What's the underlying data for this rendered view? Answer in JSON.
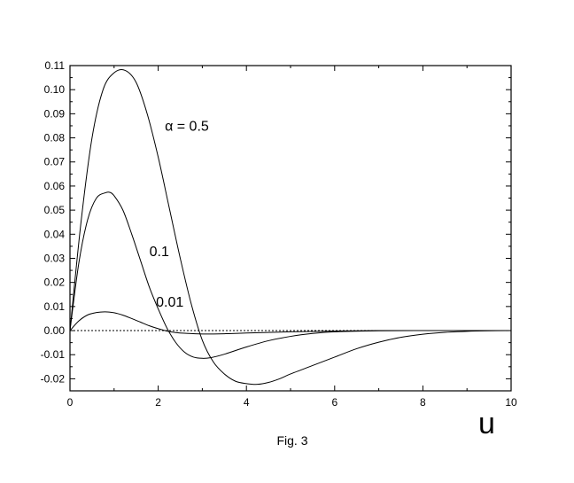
{
  "chart_data": {
    "type": "line",
    "xlabel": "u",
    "ylabel": "",
    "xlim": [
      0,
      10
    ],
    "ylim": [
      -0.025,
      0.11
    ],
    "x_ticks": [
      0,
      2,
      4,
      6,
      8,
      10
    ],
    "x_tick_labels": [
      "0",
      "2",
      "4",
      "6",
      "8",
      "10"
    ],
    "y_ticks": [
      -0.02,
      -0.01,
      0.0,
      0.01,
      0.02,
      0.03,
      0.04,
      0.05,
      0.06,
      0.07,
      0.08,
      0.09,
      0.1,
      0.11
    ],
    "y_tick_labels": [
      "-0.02",
      "-0.01",
      "0.00",
      "0.01",
      "0.02",
      "0.03",
      "0.04",
      "0.05",
      "0.06",
      "0.07",
      "0.08",
      "0.09",
      "0.10",
      "0.11"
    ],
    "grid": false,
    "reference_line": {
      "y": 0,
      "style": "dotted"
    },
    "series": [
      {
        "name": "α = 0.5",
        "x": [
          0,
          0.25,
          0.5,
          0.75,
          1.0,
          1.25,
          1.5,
          1.75,
          2.0,
          2.25,
          2.5,
          2.75,
          3.0,
          3.25,
          3.5,
          3.75,
          4.0,
          4.25,
          4.5,
          4.75,
          5.0,
          5.5,
          6.0,
          6.5,
          7.0,
          7.5,
          8.0,
          8.5,
          9.0,
          9.5,
          10.0
        ],
        "values": [
          0,
          0.045,
          0.08,
          0.1,
          0.107,
          0.108,
          0.103,
          0.09,
          0.072,
          0.051,
          0.03,
          0.011,
          -0.004,
          -0.013,
          -0.018,
          -0.021,
          -0.022,
          -0.0223,
          -0.0215,
          -0.02,
          -0.018,
          -0.0145,
          -0.011,
          -0.0075,
          -0.0048,
          -0.0028,
          -0.0015,
          -0.0007,
          -0.0003,
          -0.0001,
          0
        ]
      },
      {
        "name": "0.1",
        "x": [
          0,
          0.2,
          0.4,
          0.6,
          0.8,
          0.9,
          1.0,
          1.2,
          1.4,
          1.6,
          1.8,
          2.0,
          2.2,
          2.4,
          2.6,
          2.8,
          3.0,
          3.2,
          3.5,
          4.0,
          4.5,
          5.0,
          5.5,
          6.0,
          7.0,
          8.0,
          9.0,
          10.0
        ],
        "values": [
          0,
          0.028,
          0.046,
          0.055,
          0.0572,
          0.0574,
          0.056,
          0.05,
          0.04,
          0.029,
          0.018,
          0.009,
          0.001,
          -0.005,
          -0.009,
          -0.011,
          -0.0115,
          -0.0112,
          -0.0098,
          -0.0068,
          -0.0042,
          -0.0024,
          -0.0012,
          -0.0005,
          -0.0001,
          0,
          0,
          0
        ]
      },
      {
        "name": "0.01",
        "x": [
          0,
          0.2,
          0.4,
          0.6,
          0.8,
          1.0,
          1.2,
          1.4,
          1.6,
          1.8,
          2.0,
          2.2,
          2.4,
          2.6,
          3.0,
          3.5,
          4.0,
          5.0,
          6.0,
          7.0,
          8.0,
          9.0,
          10.0
        ],
        "values": [
          0,
          0.004,
          0.0065,
          0.0075,
          0.0078,
          0.0074,
          0.0064,
          0.005,
          0.0035,
          0.002,
          0.0008,
          -0.0002,
          -0.0008,
          -0.0011,
          -0.0014,
          -0.0013,
          -0.001,
          -0.0005,
          -0.0002,
          0,
          0,
          0,
          0
        ]
      }
    ],
    "annotations": [
      {
        "text": "α = 0.5",
        "x": 2.15,
        "y": 0.083
      },
      {
        "text": "0.1",
        "x": 1.8,
        "y": 0.031
      },
      {
        "text": "0.01",
        "x": 1.95,
        "y": 0.01
      }
    ],
    "caption": "Fig. 3"
  }
}
